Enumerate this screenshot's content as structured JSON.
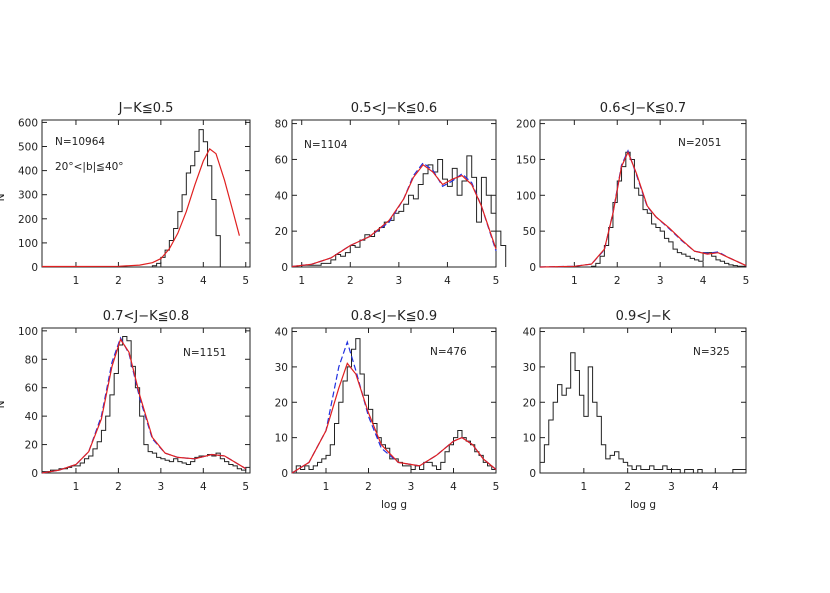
{
  "chart_data": [
    {
      "type": "histogram",
      "title": "J−K≦0.5",
      "ylabel": "N",
      "xlabel": "",
      "xlim": [
        0.2,
        5.1
      ],
      "ylim": [
        0,
        610
      ],
      "xticks": [
        1,
        2,
        3,
        4,
        5
      ],
      "yticks": [
        0,
        100,
        200,
        300,
        400,
        500,
        600
      ],
      "annotations": [
        "N=10964",
        "20°<|b|≦40°"
      ],
      "hist": {
        "start": 2.8,
        "width": 0.1,
        "values": [
          5,
          15,
          40,
          70,
          110,
          160,
          230,
          300,
          390,
          420,
          480,
          570,
          520,
          420,
          280,
          130
        ]
      },
      "red_fit": [
        [
          0.2,
          2
        ],
        [
          2.0,
          3
        ],
        [
          2.5,
          8
        ],
        [
          2.8,
          18
        ],
        [
          3.0,
          35
        ],
        [
          3.2,
          75
        ],
        [
          3.4,
          140
        ],
        [
          3.6,
          230
        ],
        [
          3.8,
          340
        ],
        [
          4.0,
          440
        ],
        [
          4.15,
          490
        ],
        [
          4.3,
          470
        ],
        [
          4.5,
          360
        ],
        [
          4.7,
          230
        ],
        [
          4.85,
          130
        ]
      ],
      "blue_fit": []
    },
    {
      "type": "histogram",
      "title": "0.5<J−K≦0.6",
      "ylabel": "",
      "xlabel": "",
      "xlim": [
        0.8,
        5.0
      ],
      "ylim": [
        0,
        82
      ],
      "xticks": [
        1,
        2,
        3,
        4,
        5
      ],
      "yticks": [
        0,
        20,
        40,
        60,
        80
      ],
      "annotations": [
        "N=1104"
      ],
      "hist": {
        "start": 0.8,
        "width": 0.1,
        "values": [
          0,
          0,
          1,
          1,
          1,
          1,
          2,
          2,
          4,
          7,
          6,
          8,
          12,
          11,
          15,
          18,
          17,
          20,
          22,
          25,
          26,
          30,
          31,
          35,
          40,
          38,
          46,
          52,
          57,
          53,
          60,
          49,
          45,
          55,
          40,
          48,
          62,
          50,
          25,
          50,
          40,
          30,
          20,
          12
        ]
      },
      "red_fit": [
        [
          0.8,
          0.3
        ],
        [
          1.2,
          1.5
        ],
        [
          1.6,
          5
        ],
        [
          2.0,
          12
        ],
        [
          2.4,
          17
        ],
        [
          2.8,
          26
        ],
        [
          3.1,
          38
        ],
        [
          3.3,
          50
        ],
        [
          3.5,
          57
        ],
        [
          3.7,
          53
        ],
        [
          3.9,
          46
        ],
        [
          4.1,
          49
        ],
        [
          4.3,
          51
        ],
        [
          4.5,
          46
        ],
        [
          4.7,
          34
        ],
        [
          5.0,
          10
        ]
      ],
      "blue_fit": [
        [
          0.8,
          0.3
        ],
        [
          1.2,
          1.5
        ],
        [
          1.6,
          5
        ],
        [
          2.0,
          12
        ],
        [
          2.4,
          17
        ],
        [
          2.8,
          25
        ],
        [
          3.1,
          38
        ],
        [
          3.3,
          51
        ],
        [
          3.5,
          58
        ],
        [
          3.7,
          54
        ],
        [
          3.9,
          45
        ],
        [
          4.1,
          48
        ],
        [
          4.3,
          52
        ],
        [
          4.5,
          47
        ],
        [
          4.7,
          34
        ],
        [
          5.0,
          9
        ]
      ]
    },
    {
      "type": "histogram",
      "title": "0.6<J−K≦0.7",
      "ylabel": "",
      "xlabel": "",
      "xlim": [
        0.2,
        5.0
      ],
      "ylim": [
        0,
        205
      ],
      "xticks": [
        1,
        2,
        3,
        4,
        5
      ],
      "yticks": [
        0,
        50,
        100,
        150,
        200
      ],
      "annotations": [
        "N=2051"
      ],
      "hist": {
        "start": 1.4,
        "width": 0.1,
        "values": [
          1,
          5,
          15,
          30,
          55,
          90,
          120,
          140,
          160,
          150,
          110,
          100,
          80,
          75,
          60,
          55,
          50,
          40,
          35,
          25,
          20,
          18,
          15,
          12,
          10,
          8,
          20,
          20,
          15,
          10,
          8,
          5,
          3,
          2,
          1,
          1
        ]
      },
      "red_fit": [
        [
          0.2,
          0
        ],
        [
          1.0,
          1
        ],
        [
          1.4,
          4
        ],
        [
          1.7,
          25
        ],
        [
          1.9,
          75
        ],
        [
          2.1,
          140
        ],
        [
          2.25,
          160
        ],
        [
          2.45,
          130
        ],
        [
          2.7,
          85
        ],
        [
          2.9,
          70
        ],
        [
          3.2,
          55
        ],
        [
          3.5,
          38
        ],
        [
          3.8,
          22
        ],
        [
          4.1,
          18
        ],
        [
          4.35,
          20
        ],
        [
          4.6,
          13
        ],
        [
          5.0,
          2
        ]
      ],
      "blue_fit": [
        [
          0.2,
          0
        ],
        [
          1.0,
          1
        ],
        [
          1.4,
          4
        ],
        [
          1.7,
          24
        ],
        [
          1.9,
          76
        ],
        [
          2.1,
          142
        ],
        [
          2.25,
          162
        ],
        [
          2.45,
          128
        ],
        [
          2.7,
          84
        ],
        [
          2.9,
          70
        ],
        [
          3.2,
          54
        ],
        [
          3.5,
          37
        ],
        [
          3.8,
          22
        ],
        [
          4.1,
          19
        ],
        [
          4.35,
          21
        ],
        [
          4.6,
          13
        ],
        [
          5.0,
          2
        ]
      ]
    },
    {
      "type": "histogram",
      "title": "0.7<J−K≦0.8",
      "ylabel": "N",
      "xlabel": "",
      "xlim": [
        0.2,
        5.1
      ],
      "ylim": [
        0,
        102
      ],
      "xticks": [
        1,
        2,
        3,
        4,
        5
      ],
      "yticks": [
        0,
        20,
        40,
        60,
        80,
        100
      ],
      "annotations": [
        "N=1151"
      ],
      "hist": {
        "start": 0.2,
        "width": 0.1,
        "values": [
          1,
          1,
          2,
          2,
          3,
          3,
          4,
          5,
          5,
          7,
          10,
          12,
          17,
          22,
          30,
          40,
          55,
          70,
          90,
          96,
          93,
          75,
          60,
          40,
          20,
          15,
          14,
          11,
          10,
          9,
          8,
          10,
          8,
          7,
          6,
          8,
          11,
          12,
          12,
          13,
          12,
          14,
          10,
          8,
          6,
          5,
          3,
          2,
          4
        ]
      },
      "red_fit": [
        [
          0.2,
          0
        ],
        [
          0.6,
          2
        ],
        [
          1.0,
          6
        ],
        [
          1.3,
          15
        ],
        [
          1.6,
          38
        ],
        [
          1.85,
          75
        ],
        [
          2.05,
          94
        ],
        [
          2.25,
          85
        ],
        [
          2.5,
          55
        ],
        [
          2.8,
          25
        ],
        [
          3.1,
          14
        ],
        [
          3.4,
          11
        ],
        [
          3.8,
          10
        ],
        [
          4.2,
          13
        ],
        [
          4.5,
          12
        ],
        [
          5.0,
          3
        ]
      ],
      "blue_fit": [
        [
          0.2,
          0
        ],
        [
          0.6,
          2
        ],
        [
          1.0,
          6
        ],
        [
          1.3,
          15
        ],
        [
          1.6,
          40
        ],
        [
          1.85,
          78
        ],
        [
          2.05,
          95
        ],
        [
          2.25,
          84
        ],
        [
          2.5,
          53
        ],
        [
          2.8,
          24
        ],
        [
          3.1,
          14
        ],
        [
          3.4,
          11
        ],
        [
          3.8,
          10
        ],
        [
          4.2,
          13
        ],
        [
          4.5,
          12
        ],
        [
          5.0,
          3
        ]
      ]
    },
    {
      "type": "histogram",
      "title": "0.8<J−K≦0.9",
      "ylabel": "",
      "xlabel": "log  g",
      "xlim": [
        0.2,
        5.0
      ],
      "ylim": [
        0,
        41
      ],
      "xticks": [
        1,
        2,
        3,
        4,
        5
      ],
      "yticks": [
        0,
        10,
        20,
        30,
        40
      ],
      "annotations": [
        "N=476"
      ],
      "hist": {
        "start": 0.3,
        "width": 0.1,
        "values": [
          2,
          1,
          2,
          1,
          2,
          3,
          4,
          5,
          8,
          14,
          20,
          26,
          30,
          35,
          38,
          28,
          22,
          18,
          14,
          10,
          8,
          7,
          4,
          4,
          3,
          2,
          2,
          1,
          2,
          1,
          3,
          3,
          2,
          1,
          3,
          6,
          8,
          10,
          12,
          10,
          9,
          8,
          6,
          5,
          3,
          2,
          1
        ]
      },
      "red_fit": [
        [
          0.2,
          0
        ],
        [
          0.6,
          3
        ],
        [
          1.0,
          12
        ],
        [
          1.3,
          24
        ],
        [
          1.5,
          31
        ],
        [
          1.7,
          28
        ],
        [
          2.0,
          17
        ],
        [
          2.3,
          8
        ],
        [
          2.7,
          3
        ],
        [
          3.2,
          2
        ],
        [
          3.6,
          5
        ],
        [
          4.0,
          9
        ],
        [
          4.2,
          10
        ],
        [
          4.45,
          8
        ],
        [
          4.7,
          4
        ],
        [
          5.0,
          1
        ]
      ],
      "blue_fit": [
        [
          0.2,
          0
        ],
        [
          0.6,
          3
        ],
        [
          1.0,
          12
        ],
        [
          1.3,
          30
        ],
        [
          1.5,
          37
        ],
        [
          1.7,
          29
        ],
        [
          2.0,
          16
        ],
        [
          2.3,
          7
        ],
        [
          2.7,
          3
        ],
        [
          3.2,
          2
        ],
        [
          3.6,
          5
        ],
        [
          4.0,
          9
        ],
        [
          4.2,
          10
        ],
        [
          4.45,
          8
        ],
        [
          4.7,
          4
        ],
        [
          5.0,
          1
        ]
      ]
    },
    {
      "type": "histogram",
      "title": "0.9<J−K",
      "ylabel": "",
      "xlabel": "log  g",
      "xlim": [
        0.0,
        4.7
      ],
      "ylim": [
        0,
        41
      ],
      "xticks": [
        1,
        2,
        3,
        4
      ],
      "yticks": [
        0,
        10,
        20,
        30,
        40
      ],
      "annotations": [
        "N=325"
      ],
      "hist": {
        "start": 0.0,
        "width": 0.1,
        "values": [
          3,
          8,
          15,
          20,
          25,
          22,
          24,
          34,
          29,
          22,
          16,
          30,
          20,
          16,
          8,
          4,
          5,
          6,
          4,
          3,
          2,
          1,
          2,
          1,
          1,
          2,
          1,
          1,
          2,
          1,
          1,
          1,
          0,
          1,
          1,
          0,
          1,
          0,
          0,
          0,
          0,
          0,
          0,
          0,
          1,
          1,
          1
        ]
      },
      "red_fit": [],
      "blue_fit": []
    }
  ]
}
